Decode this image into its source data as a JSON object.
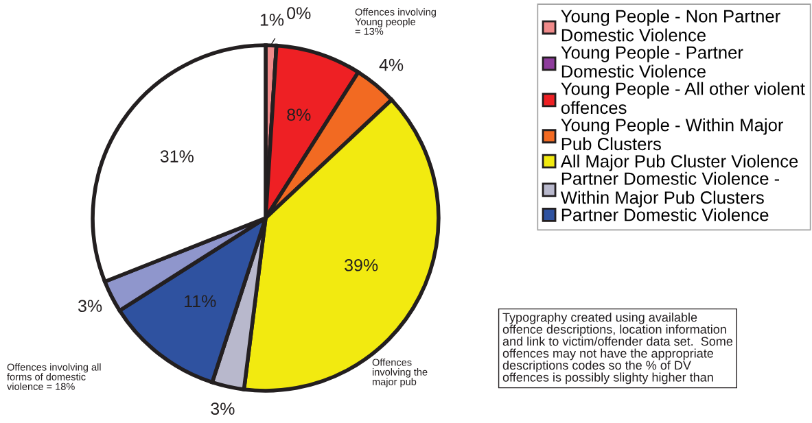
{
  "chart_data": {
    "type": "pie",
    "categories": [
      "Young People - Non Partner\nDomestic Violence",
      "Young People - Partner\nDomestic Violence",
      "Young People - All other violent\noffences",
      "Young People - Within Major\nPub Clusters",
      "All Major Pub Cluster Violence",
      "Partner Domestic Violence -\nWithin Major Pub Clusters",
      "Partner Domestic Violence",
      null,
      null
    ],
    "values": [
      1,
      0,
      8,
      4,
      39,
      3,
      11,
      3,
      31
    ],
    "value_labels": [
      "1%",
      "0%",
      "8%",
      "4%",
      "39%",
      "3%",
      "11%",
      "3%",
      "31%"
    ],
    "colors": [
      "#f08a8a",
      "#8e3c9c",
      "#ee2024",
      "#f26a22",
      "#f2ea10",
      "#b8b8cc",
      "#2f52a0",
      "#8f96cc",
      "#ffffff"
    ],
    "legend": "top right",
    "annotations": [
      "Offences involving\nYoung people\n= 13%",
      "Offences involving all\nforms of domestic\nviolence = 18%",
      "Offences\ninvolving the\nmajor pub",
      "Typography created using available\noffence descriptions, location information\nand link to victim/offender data set.  Some\noffences may not have the appropriate\ndescriptions codes so the % of DV\noffences is possibly slighty higher than"
    ]
  }
}
